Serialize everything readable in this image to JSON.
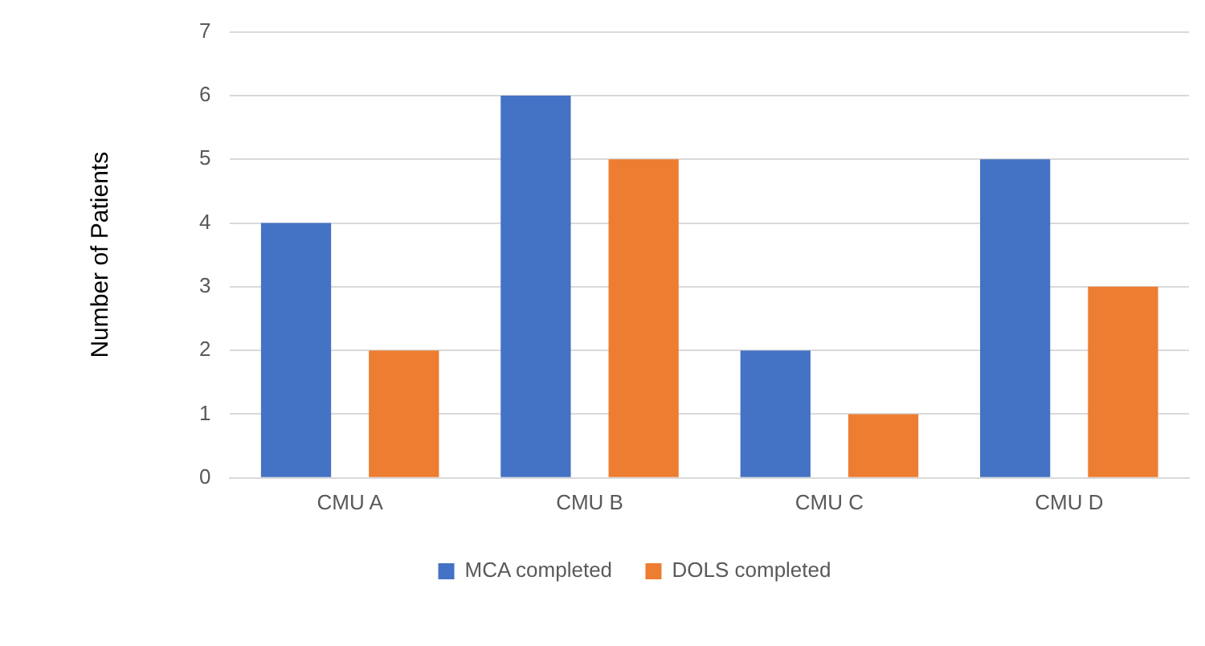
{
  "chart_data": {
    "type": "bar",
    "ylabel": "Number of Patients",
    "categories": [
      "CMU A",
      "CMU B",
      "CMU C",
      "CMU D"
    ],
    "series": [
      {
        "name": "MCA completed",
        "color": "#4472c4",
        "values": [
          4,
          6,
          2,
          5
        ]
      },
      {
        "name": "DOLS completed",
        "color": "#ed7d31",
        "values": [
          2,
          5,
          1,
          3
        ]
      }
    ],
    "ylim": [
      0,
      7
    ],
    "yticks": [
      0,
      1,
      2,
      3,
      4,
      5,
      6,
      7
    ],
    "grid": "y",
    "legend": "bottom"
  }
}
